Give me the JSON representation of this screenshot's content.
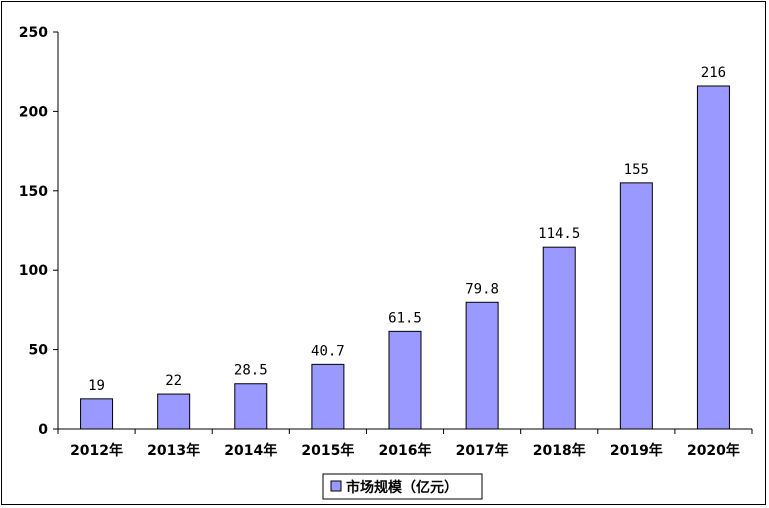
{
  "chart_data": {
    "type": "bar",
    "categories": [
      "2012年",
      "2013年",
      "2014年",
      "2015年",
      "2016年",
      "2017年",
      "2018年",
      "2019年",
      "2020年"
    ],
    "series": [
      {
        "name": "市场规模（亿元）",
        "values": [
          19,
          22,
          28.5,
          40.7,
          61.5,
          79.8,
          114.5,
          155,
          216
        ],
        "labels": [
          "19",
          "22",
          "28.5",
          "40.7",
          "61.5",
          "79.8",
          "114.5",
          "155",
          "216"
        ]
      }
    ],
    "y_ticks": [
      "0",
      "50",
      "100",
      "150",
      "200",
      "250"
    ],
    "ylim": [
      0,
      250
    ],
    "grid": false,
    "legend_position": "bottom",
    "bar_color": "#9999ff",
    "bar_edge_color": "#000000"
  }
}
